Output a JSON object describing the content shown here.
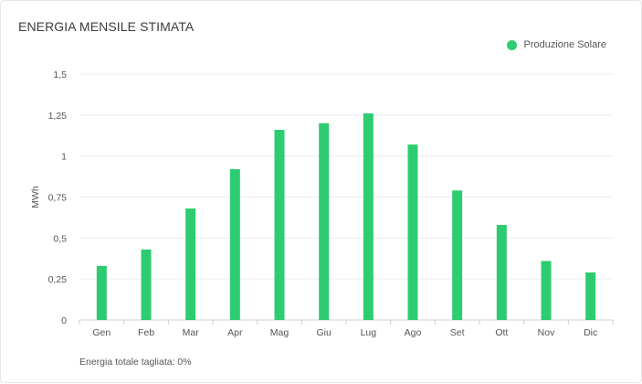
{
  "chart_data": {
    "type": "bar",
    "title": "ENERGIA MENSILE STIMATA",
    "ylabel": "MWh",
    "xlabel": "",
    "ylim": [
      0,
      1.5
    ],
    "yticks": [
      "0",
      "0,25",
      "0,5",
      "0,75",
      "1",
      "1,25",
      "1,5"
    ],
    "categories": [
      "Gen",
      "Feb",
      "Mar",
      "Apr",
      "Mag",
      "Giu",
      "Lug",
      "Ago",
      "Set",
      "Ott",
      "Nov",
      "Dic"
    ],
    "series": [
      {
        "name": "Produzione Solare",
        "color": "#2ecc71",
        "values": [
          0.33,
          0.43,
          0.68,
          0.92,
          1.16,
          1.2,
          1.26,
          1.07,
          0.79,
          0.58,
          0.36,
          0.29
        ]
      }
    ],
    "legend_position": "top-right",
    "grid": true
  },
  "footnote": "Energia totale tagliata: 0%"
}
